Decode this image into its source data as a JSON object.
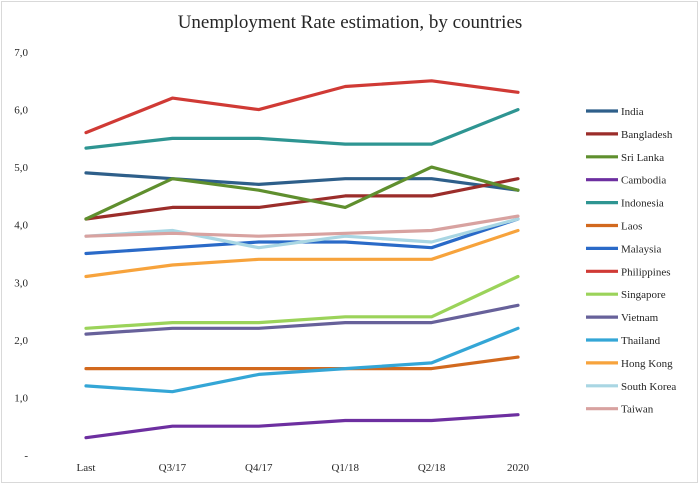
{
  "chart_data": {
    "type": "line",
    "title": "Unemployment Rate estimation, by countries",
    "xlabel": "",
    "ylabel": "",
    "categories": [
      "Last",
      "Q3/17",
      "Q4/17",
      "Q1/18",
      "Q2/18",
      "2020"
    ],
    "ylim": [
      0,
      7
    ],
    "yticks": [
      {
        "value": 0,
        "label": "-"
      },
      {
        "value": 1,
        "label": "1,0"
      },
      {
        "value": 2,
        "label": "2,0"
      },
      {
        "value": 3,
        "label": "3,0"
      },
      {
        "value": 4,
        "label": "4,0"
      },
      {
        "value": 5,
        "label": "5,0"
      },
      {
        "value": 6,
        "label": "6,0"
      },
      {
        "value": 7,
        "label": "7,0"
      }
    ],
    "grid": false,
    "legend_position": "right",
    "series": [
      {
        "name": "India",
        "color": "#2e5f8a",
        "values": [
          4.9,
          4.8,
          4.7,
          4.8,
          4.8,
          4.6
        ]
      },
      {
        "name": "Bangladesh",
        "color": "#9b2d2a",
        "values": [
          4.1,
          4.3,
          4.3,
          4.5,
          4.5,
          4.8
        ]
      },
      {
        "name": "Sri Lanka",
        "color": "#5f8f2e",
        "values": [
          4.1,
          4.8,
          4.6,
          4.3,
          5.0,
          4.6
        ]
      },
      {
        "name": "Cambodia",
        "color": "#6d2fa0",
        "values": [
          0.3,
          0.5,
          0.5,
          0.6,
          0.6,
          0.7
        ]
      },
      {
        "name": "Indonesia",
        "color": "#2e9592",
        "values": [
          5.33,
          5.5,
          5.5,
          5.4,
          5.4,
          6.0
        ]
      },
      {
        "name": "Laos",
        "color": "#d2691e",
        "values": [
          1.5,
          1.5,
          1.5,
          1.5,
          1.5,
          1.7
        ]
      },
      {
        "name": "Malaysia",
        "color": "#2a6ac8",
        "values": [
          3.5,
          3.6,
          3.7,
          3.7,
          3.6,
          4.1
        ]
      },
      {
        "name": "Philippines",
        "color": "#d03a35",
        "values": [
          5.6,
          6.2,
          6.0,
          6.4,
          6.5,
          6.3
        ]
      },
      {
        "name": "Singapore",
        "color": "#9bd35a",
        "values": [
          2.2,
          2.3,
          2.3,
          2.4,
          2.4,
          3.1
        ]
      },
      {
        "name": "Vietnam",
        "color": "#67619a",
        "values": [
          2.1,
          2.2,
          2.2,
          2.3,
          2.3,
          2.6
        ]
      },
      {
        "name": "Thailand",
        "color": "#34a6d6",
        "values": [
          1.2,
          1.1,
          1.4,
          1.5,
          1.6,
          2.2
        ]
      },
      {
        "name": "Hong Kong",
        "color": "#f7a33c",
        "values": [
          3.1,
          3.3,
          3.4,
          3.4,
          3.4,
          3.9
        ]
      },
      {
        "name": "South Korea",
        "color": "#a9d6e3",
        "values": [
          3.8,
          3.9,
          3.6,
          3.8,
          3.7,
          4.1
        ]
      },
      {
        "name": "Taiwan",
        "color": "#d8a2a0",
        "values": [
          3.8,
          3.85,
          3.8,
          3.85,
          3.9,
          4.15
        ]
      }
    ]
  }
}
